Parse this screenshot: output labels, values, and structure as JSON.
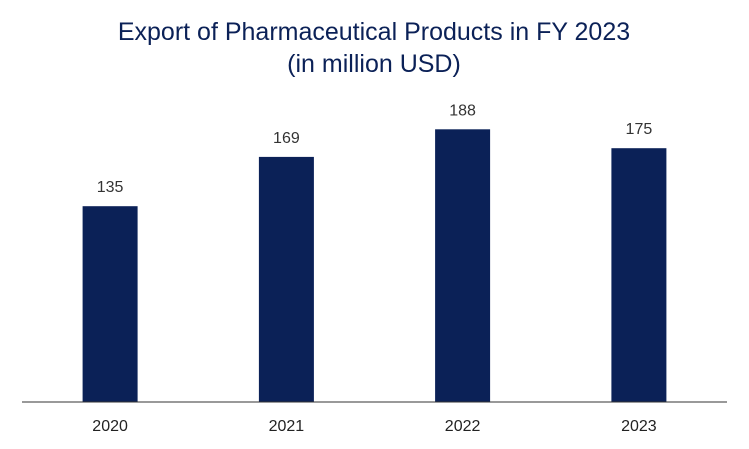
{
  "chart_data": {
    "type": "bar",
    "title_lines": [
      "Export of Pharmaceutical Products in FY 2023",
      "(in million USD)"
    ],
    "categories": [
      "2020",
      "2021",
      "2022",
      "2023"
    ],
    "values": [
      135,
      169,
      188,
      175
    ],
    "xlabel": "",
    "ylabel": "",
    "ylim": [
      0,
      190
    ],
    "grid": false,
    "legend": "none",
    "bar_color": "#0b2157",
    "axis_color": "#333333"
  }
}
